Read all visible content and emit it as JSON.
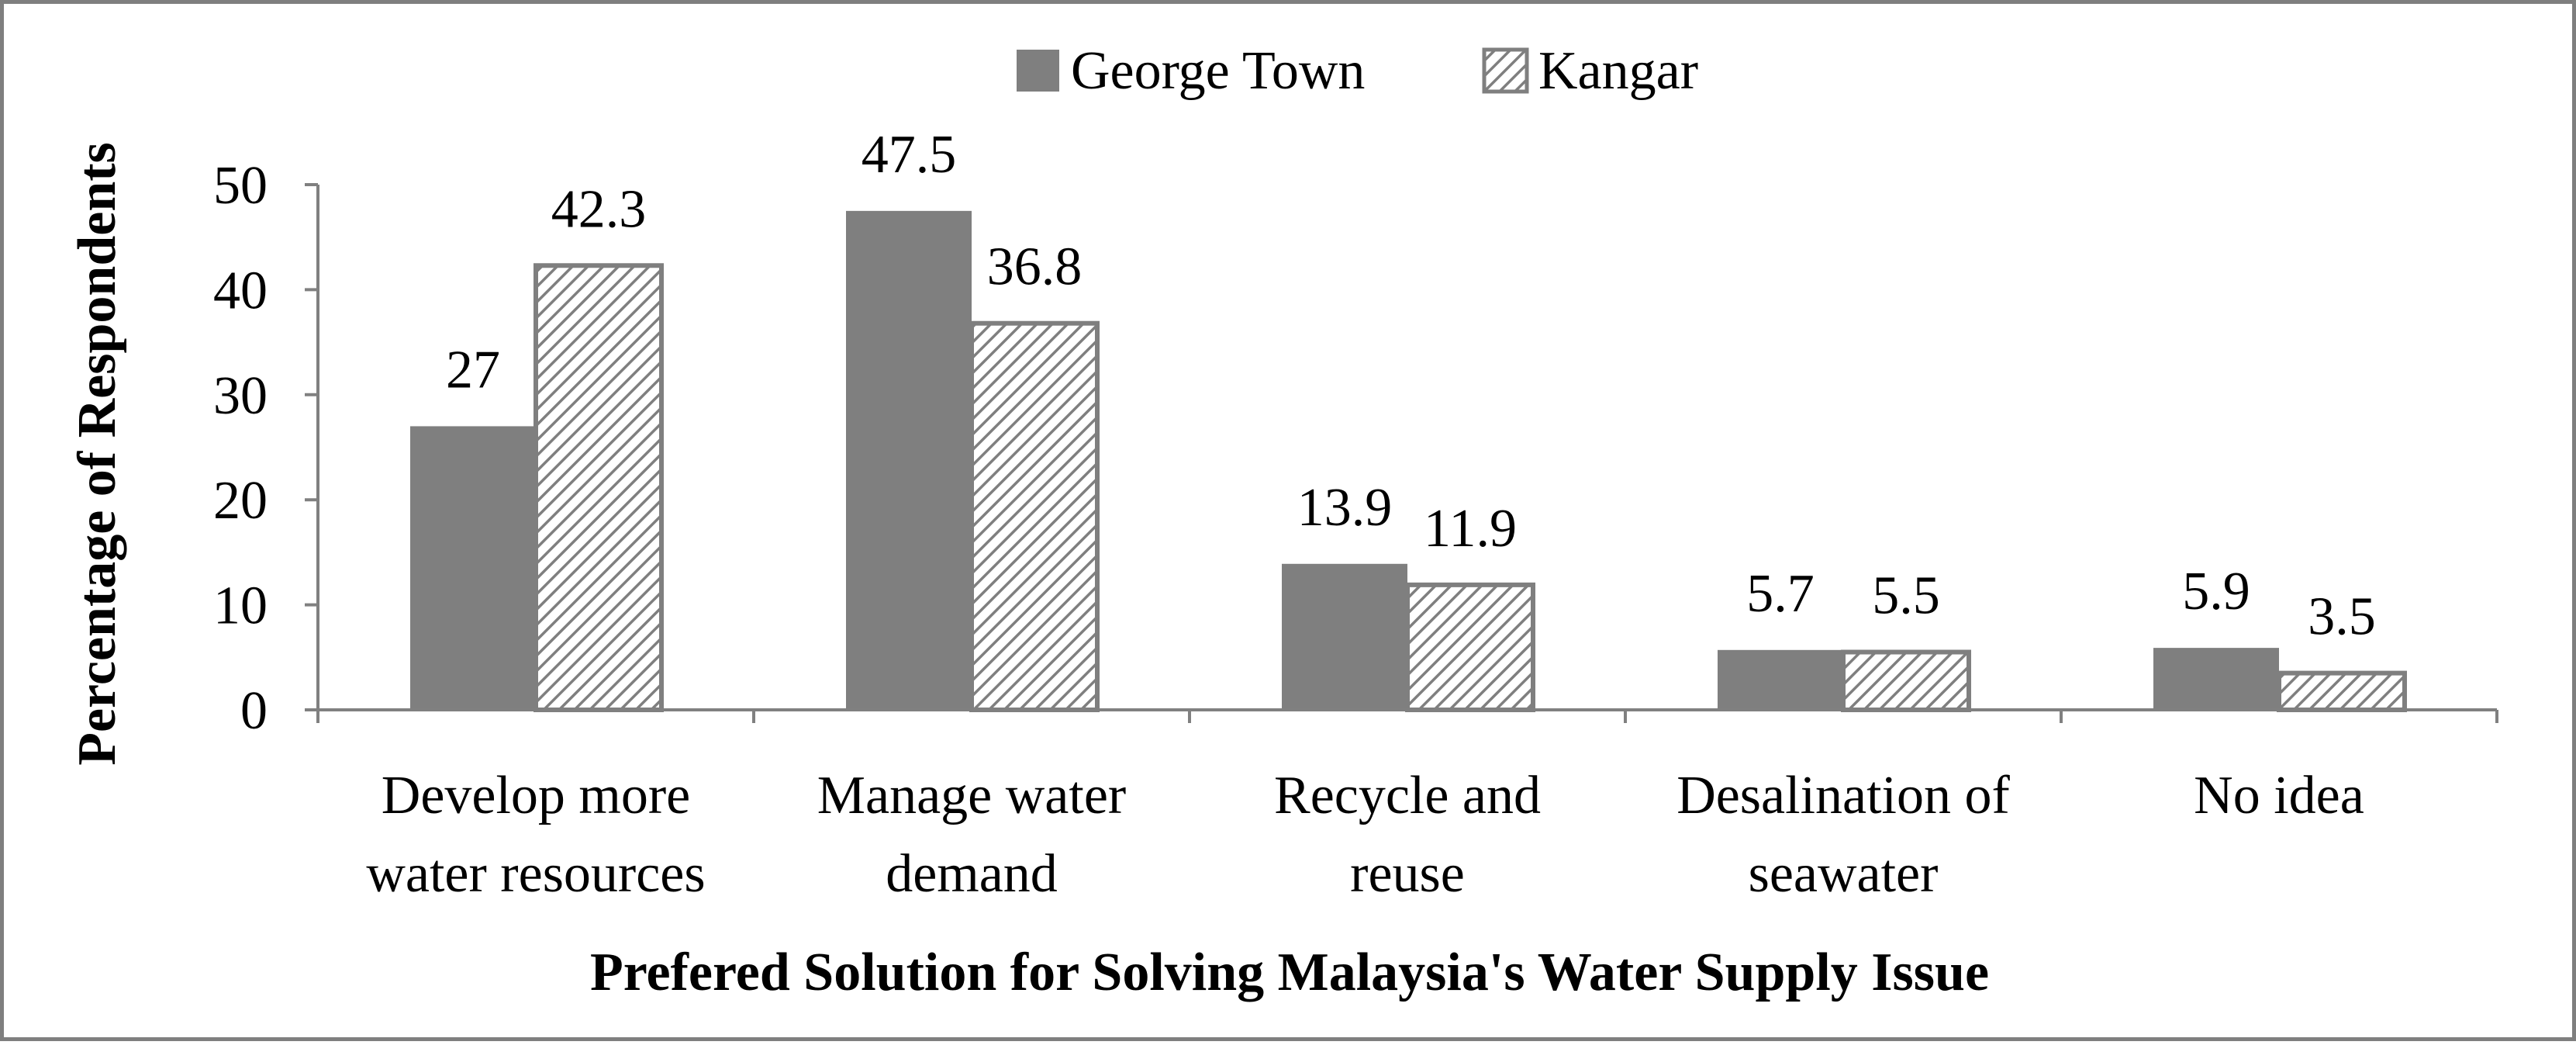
{
  "chart_data": {
    "type": "bar",
    "xlabel": "Prefered Solution for Solving Malaysia's Water Supply Issue",
    "ylabel": "Percentage of Respondents",
    "ylim": [
      0,
      50
    ],
    "yticks": [
      "0",
      "10",
      "20",
      "30",
      "40",
      "50"
    ],
    "grid": false,
    "legend_position": "top",
    "categories": [
      [
        "Develop more",
        "water resources"
      ],
      [
        "Manage water",
        "demand"
      ],
      [
        "Recycle and",
        "reuse"
      ],
      [
        "Desalination of",
        "seawater"
      ],
      [
        "No idea"
      ]
    ],
    "series": [
      {
        "name": "George Town",
        "style": "solid",
        "color": "#7f7f7f",
        "values": [
          27,
          47.5,
          13.9,
          5.7,
          5.9
        ],
        "labels": [
          "27",
          "47.5",
          "13.9",
          "5.7",
          "5.9"
        ]
      },
      {
        "name": "Kangar",
        "style": "hatched",
        "color": "#7f7f7f",
        "values": [
          42.3,
          36.8,
          11.9,
          5.5,
          3.5
        ],
        "labels": [
          "42.3",
          "36.8",
          "11.9",
          "5.5",
          "3.5"
        ]
      }
    ]
  }
}
